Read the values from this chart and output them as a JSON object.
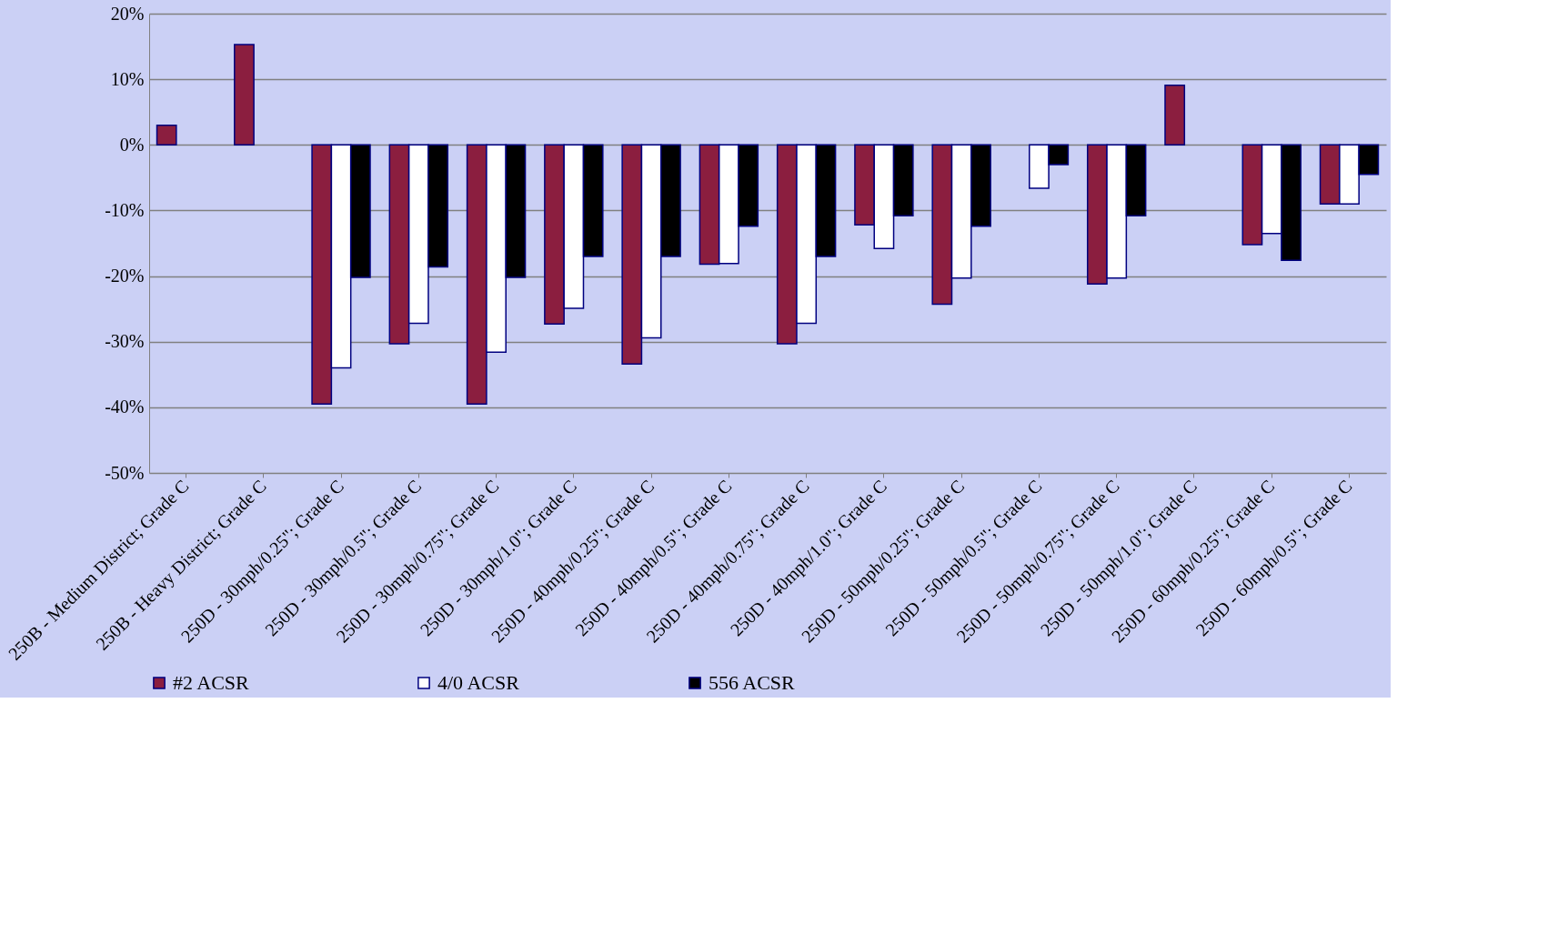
{
  "chart_data": {
    "type": "bar",
    "categories": [
      "250B - Medium District; Grade C",
      "250B - Heavy District; Grade C",
      "250D - 30mph/0.25\"; Grade C",
      "250D - 30mph/0.5\"; Grade C",
      "250D - 30mph/0.75\"; Grade C",
      "250D - 30mph/1.0\"; Grade C",
      "250D - 40mph/0.25\"; Grade C",
      "250D - 40mph/0.5\"; Grade C",
      "250D - 40mph/0.75\"; Grade C",
      "250D - 40mph/1.0\"; Grade C",
      "250D - 50mph/0.25\"; Grade C",
      "250D - 50mph/0.5\"; Grade C",
      "250D - 50mph/0.75\"; Grade C",
      "250D - 50mph/1.0\"; Grade C",
      "250D - 60mph/0.25\"; Grade C",
      "250D - 60mph/0.5\"; Grade C"
    ],
    "series": [
      {
        "name": "#2 ACSR",
        "color": "#8b1e3f",
        "values": [
          3,
          15.3,
          -39.5,
          -30.3,
          -39.5,
          -27.3,
          -33.4,
          -18.2,
          -30.3,
          -12.2,
          -24.3,
          null,
          -21.2,
          9.1,
          -15.2,
          -9
        ]
      },
      {
        "name": "4/0 ACSR",
        "color": "#ffffff",
        "values": [
          null,
          null,
          -34,
          -27.2,
          -31.6,
          -24.9,
          -29.4,
          -18.1,
          -27.2,
          -15.8,
          -20.3,
          -6.6,
          -20.3,
          null,
          -13.5,
          -9
        ]
      },
      {
        "name": "556 ACSR",
        "color": "#000000",
        "values": [
          null,
          null,
          -20.2,
          -18.6,
          -20.2,
          -17,
          -17,
          -12.4,
          -17,
          -10.8,
          -12.4,
          -3,
          -10.8,
          null,
          -17.6,
          -4.5
        ]
      }
    ],
    "ylim": [
      -50,
      20
    ],
    "yticks": [
      {
        "value": -50,
        "label": "-50%"
      },
      {
        "value": -40,
        "label": "-40%"
      },
      {
        "value": -30,
        "label": "-30%"
      },
      {
        "value": -20,
        "label": "-20%"
      },
      {
        "value": -10,
        "label": "-10%"
      },
      {
        "value": 0,
        "label": "0%"
      },
      {
        "value": 10,
        "label": "10%"
      },
      {
        "value": 20,
        "label": "20%"
      }
    ],
    "grid": "y",
    "legend": "bottom"
  }
}
